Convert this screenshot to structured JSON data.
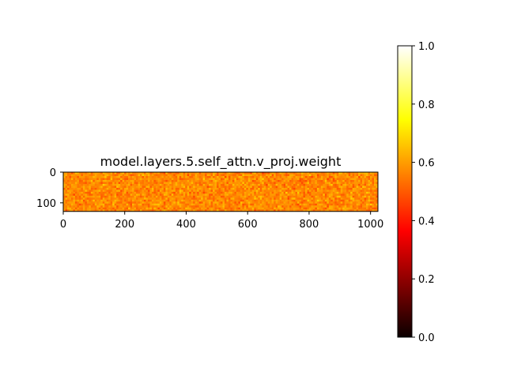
{
  "chart_data": {
    "type": "heatmap",
    "title": "model.layers.5.self_attn.v_proj.weight",
    "colormap": "hot",
    "matrix_shape": [
      128,
      1024
    ],
    "value_range": [
      0,
      1
    ],
    "typical_values": {
      "mean": 0.57,
      "spread": 0.04
    },
    "x_axis": {
      "ticks": [
        0,
        200,
        400,
        600,
        800,
        1000
      ],
      "tick_labels": [
        "0",
        "200",
        "400",
        "600",
        "800",
        "1000"
      ],
      "range": [
        0,
        1024
      ]
    },
    "y_axis": {
      "ticks": [
        0,
        100
      ],
      "tick_labels": [
        "0",
        "100"
      ],
      "range": [
        0,
        128
      ],
      "inverted": true
    },
    "colorbar": {
      "ticks": [
        0.0,
        0.2,
        0.4,
        0.6,
        0.8,
        1.0
      ],
      "tick_labels": [
        "0.0",
        "0.2",
        "0.4",
        "0.6",
        "0.8",
        "1.0"
      ],
      "range": [
        0,
        1
      ]
    },
    "grid": false
  }
}
